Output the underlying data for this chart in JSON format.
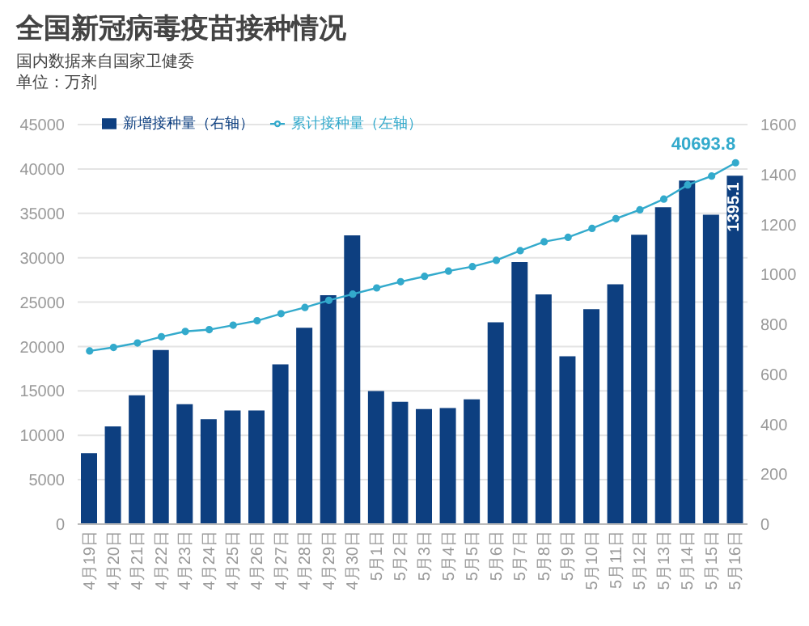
{
  "chart_data": {
    "type": "bar",
    "title": "全国新冠病毒疫苗接种情况",
    "subtitle": "国内数据来自国家卫健委",
    "annotations": [
      "单位：万剂"
    ],
    "categories": [
      "4月19日",
      "4月20日",
      "4月21日",
      "4月22日",
      "4月23日",
      "4月24日",
      "4月25日",
      "4月26日",
      "4月27日",
      "4月28日",
      "4月29日",
      "4月30日",
      "5月1日",
      "5月2日",
      "5月3日",
      "5月4日",
      "5月5日",
      "5月6日",
      "5月7日",
      "5月8日",
      "5月9日",
      "5月10日",
      "5月11日",
      "5月12日",
      "5月13日",
      "5月14日",
      "5月15日",
      "5月16日"
    ],
    "series": [
      {
        "name": "新增接种量（右轴）",
        "axis": "y2",
        "color": "#0d3f80",
        "values": [
          284,
          391,
          516,
          697,
          480,
          420,
          455,
          455,
          640,
          786,
          917,
          1156,
          533,
          490,
          461,
          465,
          500,
          808,
          1049,
          920,
          672,
          861,
          960,
          1159,
          1269,
          1376,
          1239,
          1395.1
        ],
        "value_labels": [
          null,
          null,
          null,
          null,
          null,
          null,
          null,
          null,
          null,
          null,
          null,
          null,
          null,
          null,
          null,
          null,
          null,
          null,
          null,
          null,
          null,
          null,
          null,
          null,
          null,
          null,
          null,
          "1395.1"
        ]
      },
      {
        "name": "累计接种量（左轴）",
        "type": "line",
        "color": "#33aacc",
        "marker": "circle",
        "values": [
          19500,
          19900,
          20400,
          21100,
          21700,
          21900,
          22400,
          22900,
          23700,
          24400,
          25200,
          25900,
          26600,
          27300,
          27900,
          28500,
          29000,
          29700,
          30800,
          31800,
          32300,
          33300,
          34400,
          35400,
          36600,
          38200,
          39200,
          40693.8
        ],
        "value_labels": [
          null,
          null,
          null,
          null,
          null,
          null,
          null,
          null,
          null,
          null,
          null,
          null,
          null,
          null,
          null,
          null,
          null,
          null,
          null,
          null,
          null,
          null,
          null,
          null,
          null,
          null,
          null,
          "40693.8"
        ]
      }
    ],
    "ylim": [
      0,
      45000
    ],
    "yticks": [
      0,
      5000,
      10000,
      15000,
      20000,
      25000,
      30000,
      35000,
      40000,
      45000
    ],
    "y2lim": [
      0,
      1600
    ],
    "y2ticks": [
      0,
      200,
      400,
      600,
      800,
      1000,
      1200,
      1400,
      1600
    ],
    "grid": "y",
    "legend": "top left"
  }
}
